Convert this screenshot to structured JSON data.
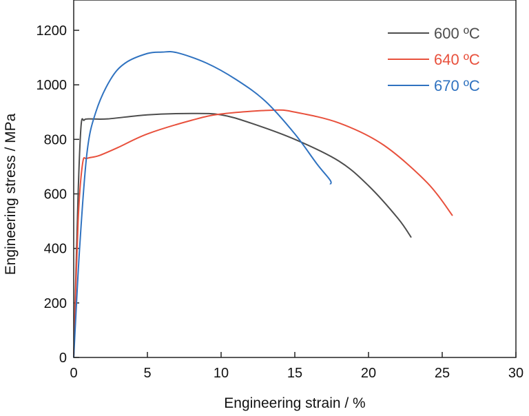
{
  "chart_data": {
    "type": "line",
    "title": "",
    "xlabel": "Engineering strain / %",
    "ylabel": "Engineering stress / MPa",
    "xlim": [
      0,
      30
    ],
    "ylim": [
      0,
      1200
    ],
    "xticks": [
      0,
      5,
      10,
      15,
      20,
      25,
      30
    ],
    "yticks": [
      0,
      200,
      400,
      600,
      800,
      1000,
      1200
    ],
    "grid": false,
    "legend_position": "top-right",
    "series": [
      {
        "name": "600 ºC",
        "color": "#4d4d4d",
        "x": [
          0,
          0.3,
          0.5,
          0.7,
          1,
          2.3,
          5,
          8,
          10,
          12,
          15,
          18,
          20,
          22,
          22.9
        ],
        "y": [
          0,
          600,
          850,
          870,
          875,
          875,
          890,
          895,
          890,
          860,
          800,
          720,
          630,
          510,
          440
        ]
      },
      {
        "name": "640 ºC",
        "color": "#e8503c",
        "x": [
          0,
          0.3,
          0.6,
          0.9,
          1.7,
          3,
          5,
          8,
          10,
          13.5,
          15,
          18,
          21,
          24,
          25.7
        ],
        "y": [
          0,
          500,
          710,
          730,
          740,
          770,
          820,
          870,
          893,
          907,
          900,
          860,
          780,
          640,
          520
        ]
      },
      {
        "name": "670 ºC",
        "color": "#2f72c0",
        "x": [
          0,
          0.4,
          0.9,
          1.5,
          2.5,
          3.5,
          5,
          6,
          7,
          9,
          11,
          13,
          15,
          16.5,
          17.4,
          17.4
        ],
        "y": [
          0,
          400,
          750,
          900,
          1020,
          1080,
          1115,
          1120,
          1118,
          1080,
          1020,
          940,
          820,
          710,
          650,
          635
        ]
      }
    ]
  }
}
